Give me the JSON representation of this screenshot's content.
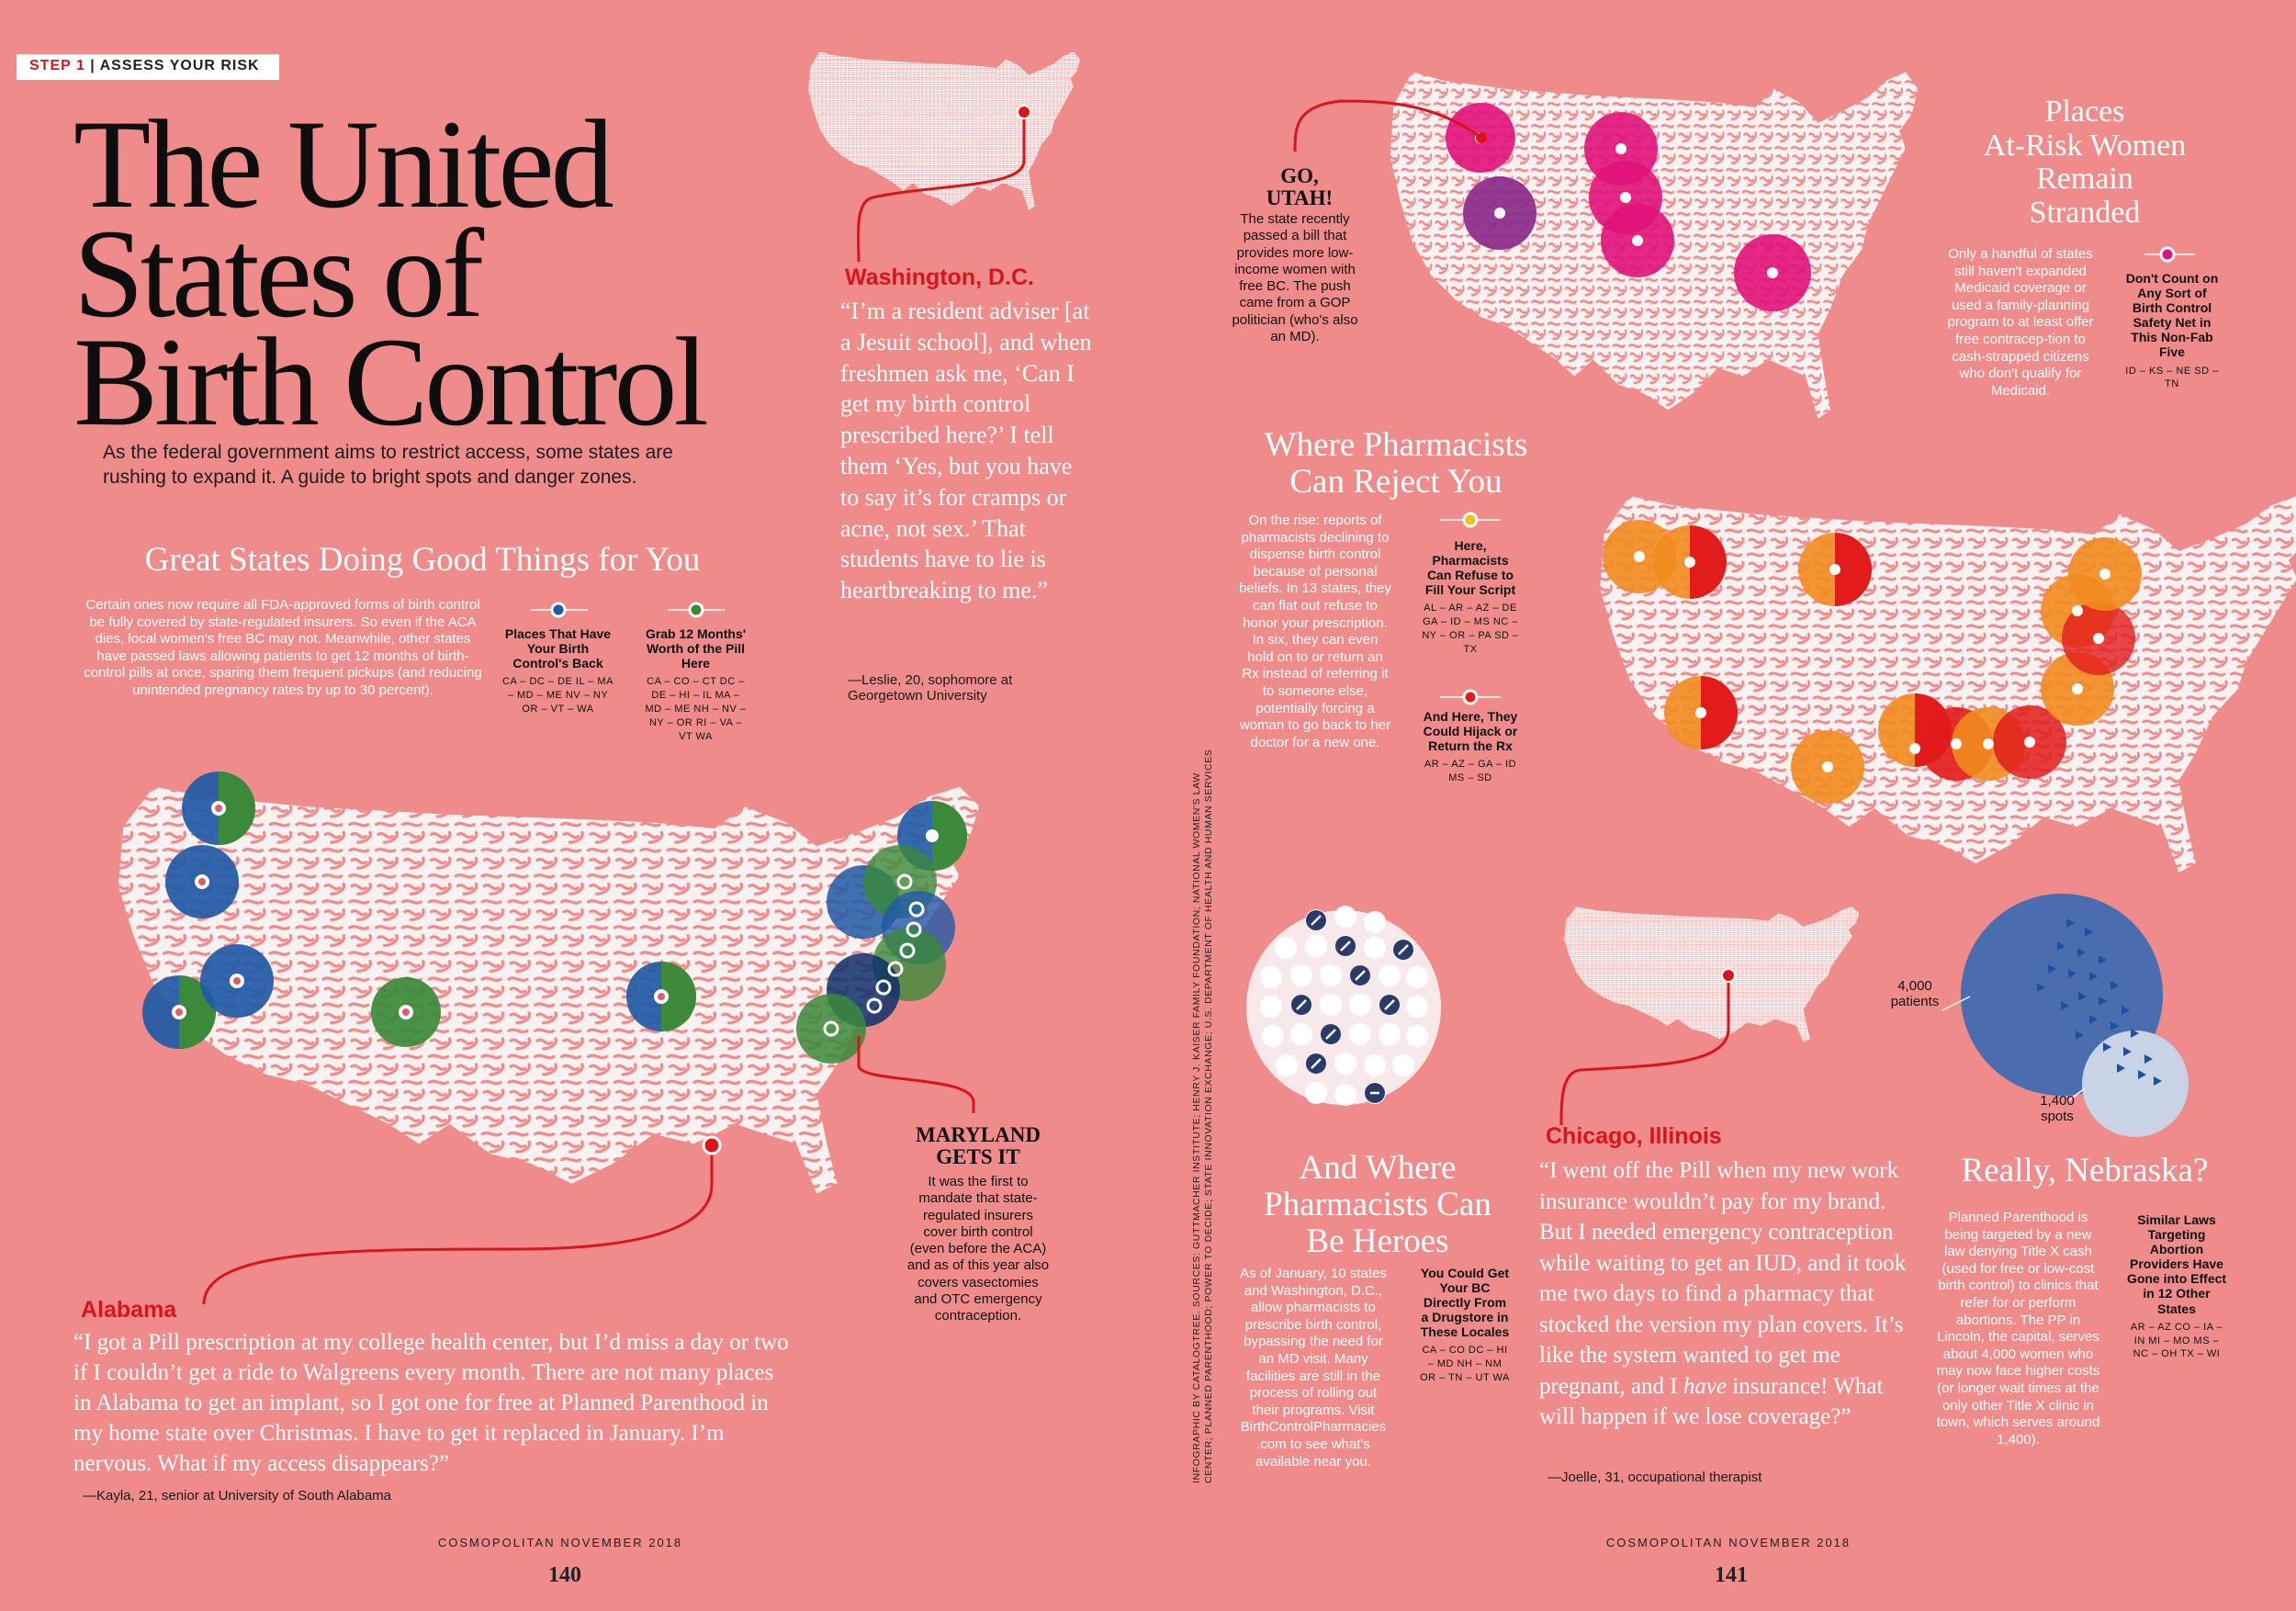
{
  "step": {
    "number": "STEP 1",
    "label": "ASSESS YOUR RISK"
  },
  "title": {
    "line1": "The United",
    "line2": "States of",
    "line3": "Birth Control"
  },
  "dek": "As the federal government aims to restrict access, some states are rushing to expand it. A guide to bright spots and danger zones.",
  "great_states": {
    "heading": "Great States Doing Good Things for You",
    "body": "Certain ones now require all FDA-approved forms of birth control be fully covered by state-regulated insurers. So even if the ACA dies, local women's free BC may not. Meanwhile, other states have passed laws allowing patients to get 12 months of birth-control pills at once, sparing them frequent pickups (and reducing unintended pregnancy rates by up to 30 percent).",
    "key1_title": "Places That Have Your Birth Control's Back",
    "key1_states": "CA – DC – DE IL – MA – MD – ME NV – NY OR – VT – WA",
    "key2_title": "Grab 12 Months' Worth of the Pill Here",
    "key2_states": "CA – CO – CT DC – DE – HI – IL MA – MD – ME NH – NV – NY – OR RI – VA – VT WA",
    "colors": {
      "blue": "#1f5aa6",
      "green": "#3a8a3a"
    }
  },
  "washington": {
    "label": "Washington, D.C.",
    "quote": "“I’m a resident adviser [at a Jesuit school], and when freshmen ask me, ‘Can I get my birth control prescribed here?’ I tell them ‘Yes, but you have to say it’s for cramps or acne, not sex.’ That students have to lie is heartbreaking to me.”",
    "attribution": "—Leslie, 20, sophomore at Georgetown University"
  },
  "maryland": {
    "heading_line1": "MARYLAND",
    "heading_line2": "GETS IT",
    "body": "It was the first to mandate that state-regulated insurers cover birth control (even before the ACA) and as of this year also covers vasectomies and OTC emergency contraception."
  },
  "alabama": {
    "label": "Alabama",
    "quote": "“I got a Pill prescription at my college health center, but I’d miss a day or two if I couldn’t get a ride to Walgreens every month. There are not many places in Alabama to get an implant, so I got one for free at Planned Parenthood in my home state over Christmas. I have to get it replaced in January. I’m nervous. What if my access disappears?”",
    "attribution": "—Kayla, 21, senior at University of South Alabama"
  },
  "utah": {
    "heading_line1": "GO,",
    "heading_line2": "UTAH!",
    "body": "The state recently passed a bill that provides more low-income women with free BC. The push came from a GOP politician (who's also an MD)."
  },
  "stranded": {
    "heading_line1": "Places",
    "heading_line2": "At-Risk Women",
    "heading_line3": "Remain",
    "heading_line4": "Stranded",
    "body": "Only a handful of states still haven't expanded Medicaid coverage or used a family-planning program to at least offer free contracep-tion to cash-strapped citizens who don't qualify for Medicaid.",
    "key_title": "Don't Count on Any Sort of Birth Control Safety Net in This Non-Fab Five",
    "key_states": "ID – KS – NE SD – TN",
    "color": "#e0127a"
  },
  "pharmacists_reject": {
    "heading_line1": "Where Pharmacists",
    "heading_line2": "Can Reject You",
    "body": "On the rise: reports of pharmacists declining to dispense birth control because of personal beliefs. In 13 states, they can flat out refuse to honor your prescription. In six, they can even hold on to or return an Rx instead of referring it to someone else, potentially forcing a woman to go back to her doctor for a new one.",
    "key1_title": "Here, Pharmacists Can Refuse to Fill Your Script",
    "key1_states": "AL – AR – AZ – DE GA – ID – MS NC – NY – OR – PA SD – TX",
    "key2_title": "And Here, They Could Hijack or Return the Rx",
    "key2_states": "AR – AZ – GA – ID MS – SD",
    "colors": {
      "orange": "#f28b1e",
      "red": "#e21b1b"
    }
  },
  "heroes": {
    "heading_line1": "And Where",
    "heading_line2": "Pharmacists Can",
    "heading_line3": "Be Heroes",
    "body": "As of January, 10 states and Washington, D.C., allow pharmacists to prescribe birth control, bypassing the need for an MD visit. Many facilities are still in the process of rolling out their programs. Visit BirthControlPharmacies .com to see what's available near you.",
    "key_title": "You Could Get Your BC Directly From a Drugstore in These Locales",
    "key_states": "CA – CO DC – HI – MD NH – NM OR – TN – UT WA"
  },
  "chicago": {
    "label": "Chicago, Illinois",
    "quote_part1": "“I went off the Pill when my new work insurance wouldn’t pay for my brand. But I needed emergency contraception while waiting to get an IUD, and it took me two days to find a pharmacy that stocked the version my plan covers. It’s like the system wanted to get me pregnant, and I",
    "quote_em": "have",
    "quote_part2": "insurance! What will happen if we lose coverage?”",
    "attribution": "—Joelle, 31, occupational therapist"
  },
  "nebraska": {
    "patients_value": "4,000",
    "patients_label": "patients",
    "spots_value": "1,400",
    "spots_label": "spots",
    "heading": "Really, Nebraska?",
    "body": "Planned Parenthood is being targeted by a new law denying Title X cash (used for free or low-cost birth control) to clinics that refer for or perform abortions. The PP in Lincoln, the capital, serves about 4,000 women who may now face higher costs (or longer wait times at the only other Title X clinic in town, which serves around 1,400).",
    "key_title": "Similar Laws Targeting Abortion Providers Have Gone into Effect in 12 Other States",
    "key_states": "AR – AZ CO – IA – IN MI – MO MS – NC – OH TX – WI"
  },
  "credits": "INFOGRAPHIC BY CATALOGTREE. SOURCES: GUTTMACHER INSTITUTE; HENRY J. KAISER FAMILY FOUNDATION; NATIONAL WOMEN'S LAW CENTER; PLANNED PARENTHOOD; POWER TO DECIDE; STATE INNOVATION EXCHANGE; U.S. DEPARTMENT OF HEALTH AND HUMAN SERVICES",
  "footer": {
    "left_text": "COSMOPOLITAN NOVEMBER 2018",
    "left_page": "140",
    "right_text": "COSMOPOLITAN NOVEMBER 2018",
    "right_page": "141"
  }
}
